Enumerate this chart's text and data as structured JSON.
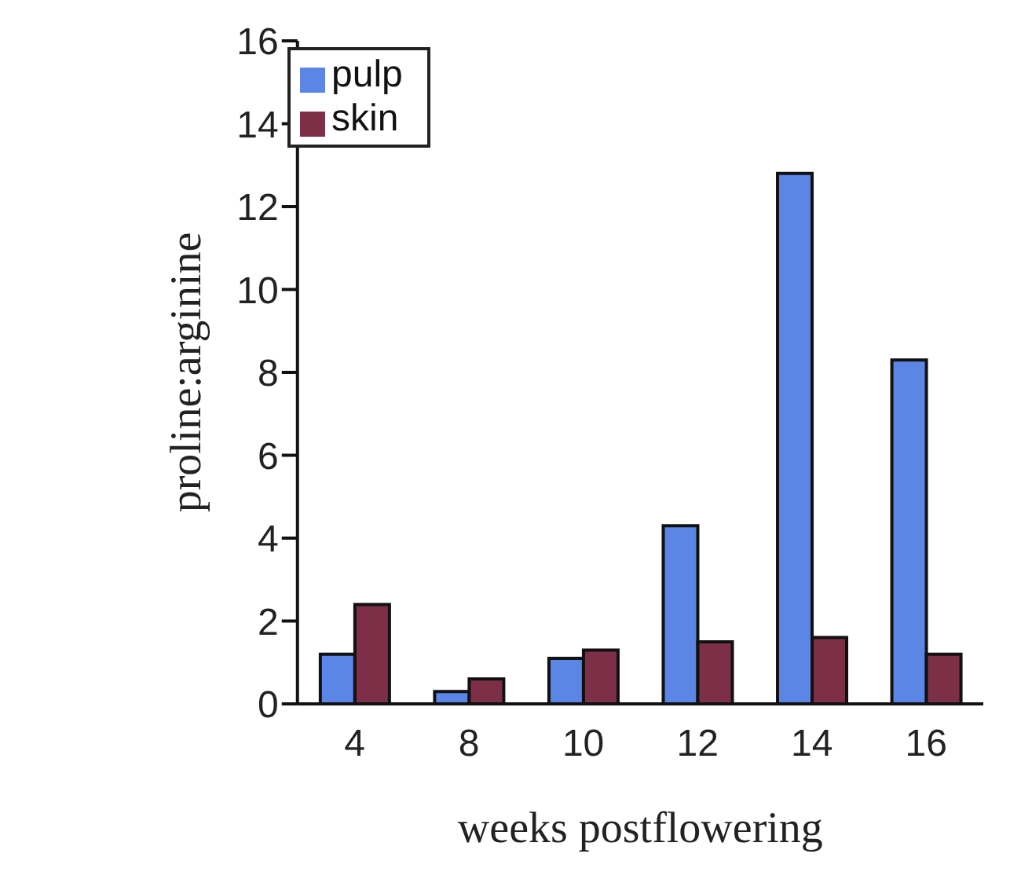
{
  "chart_data": {
    "type": "bar",
    "xlabel": "weeks postflowering",
    "ylabel": "proline:arginine",
    "categories": [
      "4",
      "8",
      "10",
      "12",
      "14",
      "16"
    ],
    "series": [
      {
        "name": "pulp",
        "color": "#5b86e6",
        "values": [
          1.2,
          0.3,
          1.1,
          4.3,
          12.8,
          8.3
        ]
      },
      {
        "name": "skin",
        "color": "#7d2f47",
        "values": [
          2.4,
          0.6,
          1.3,
          1.5,
          1.6,
          1.2
        ]
      }
    ],
    "ylim": [
      0,
      16
    ],
    "yticks": [
      0,
      2,
      4,
      6,
      8,
      10,
      12,
      14,
      16
    ],
    "grid": false,
    "legend": "top left"
  }
}
